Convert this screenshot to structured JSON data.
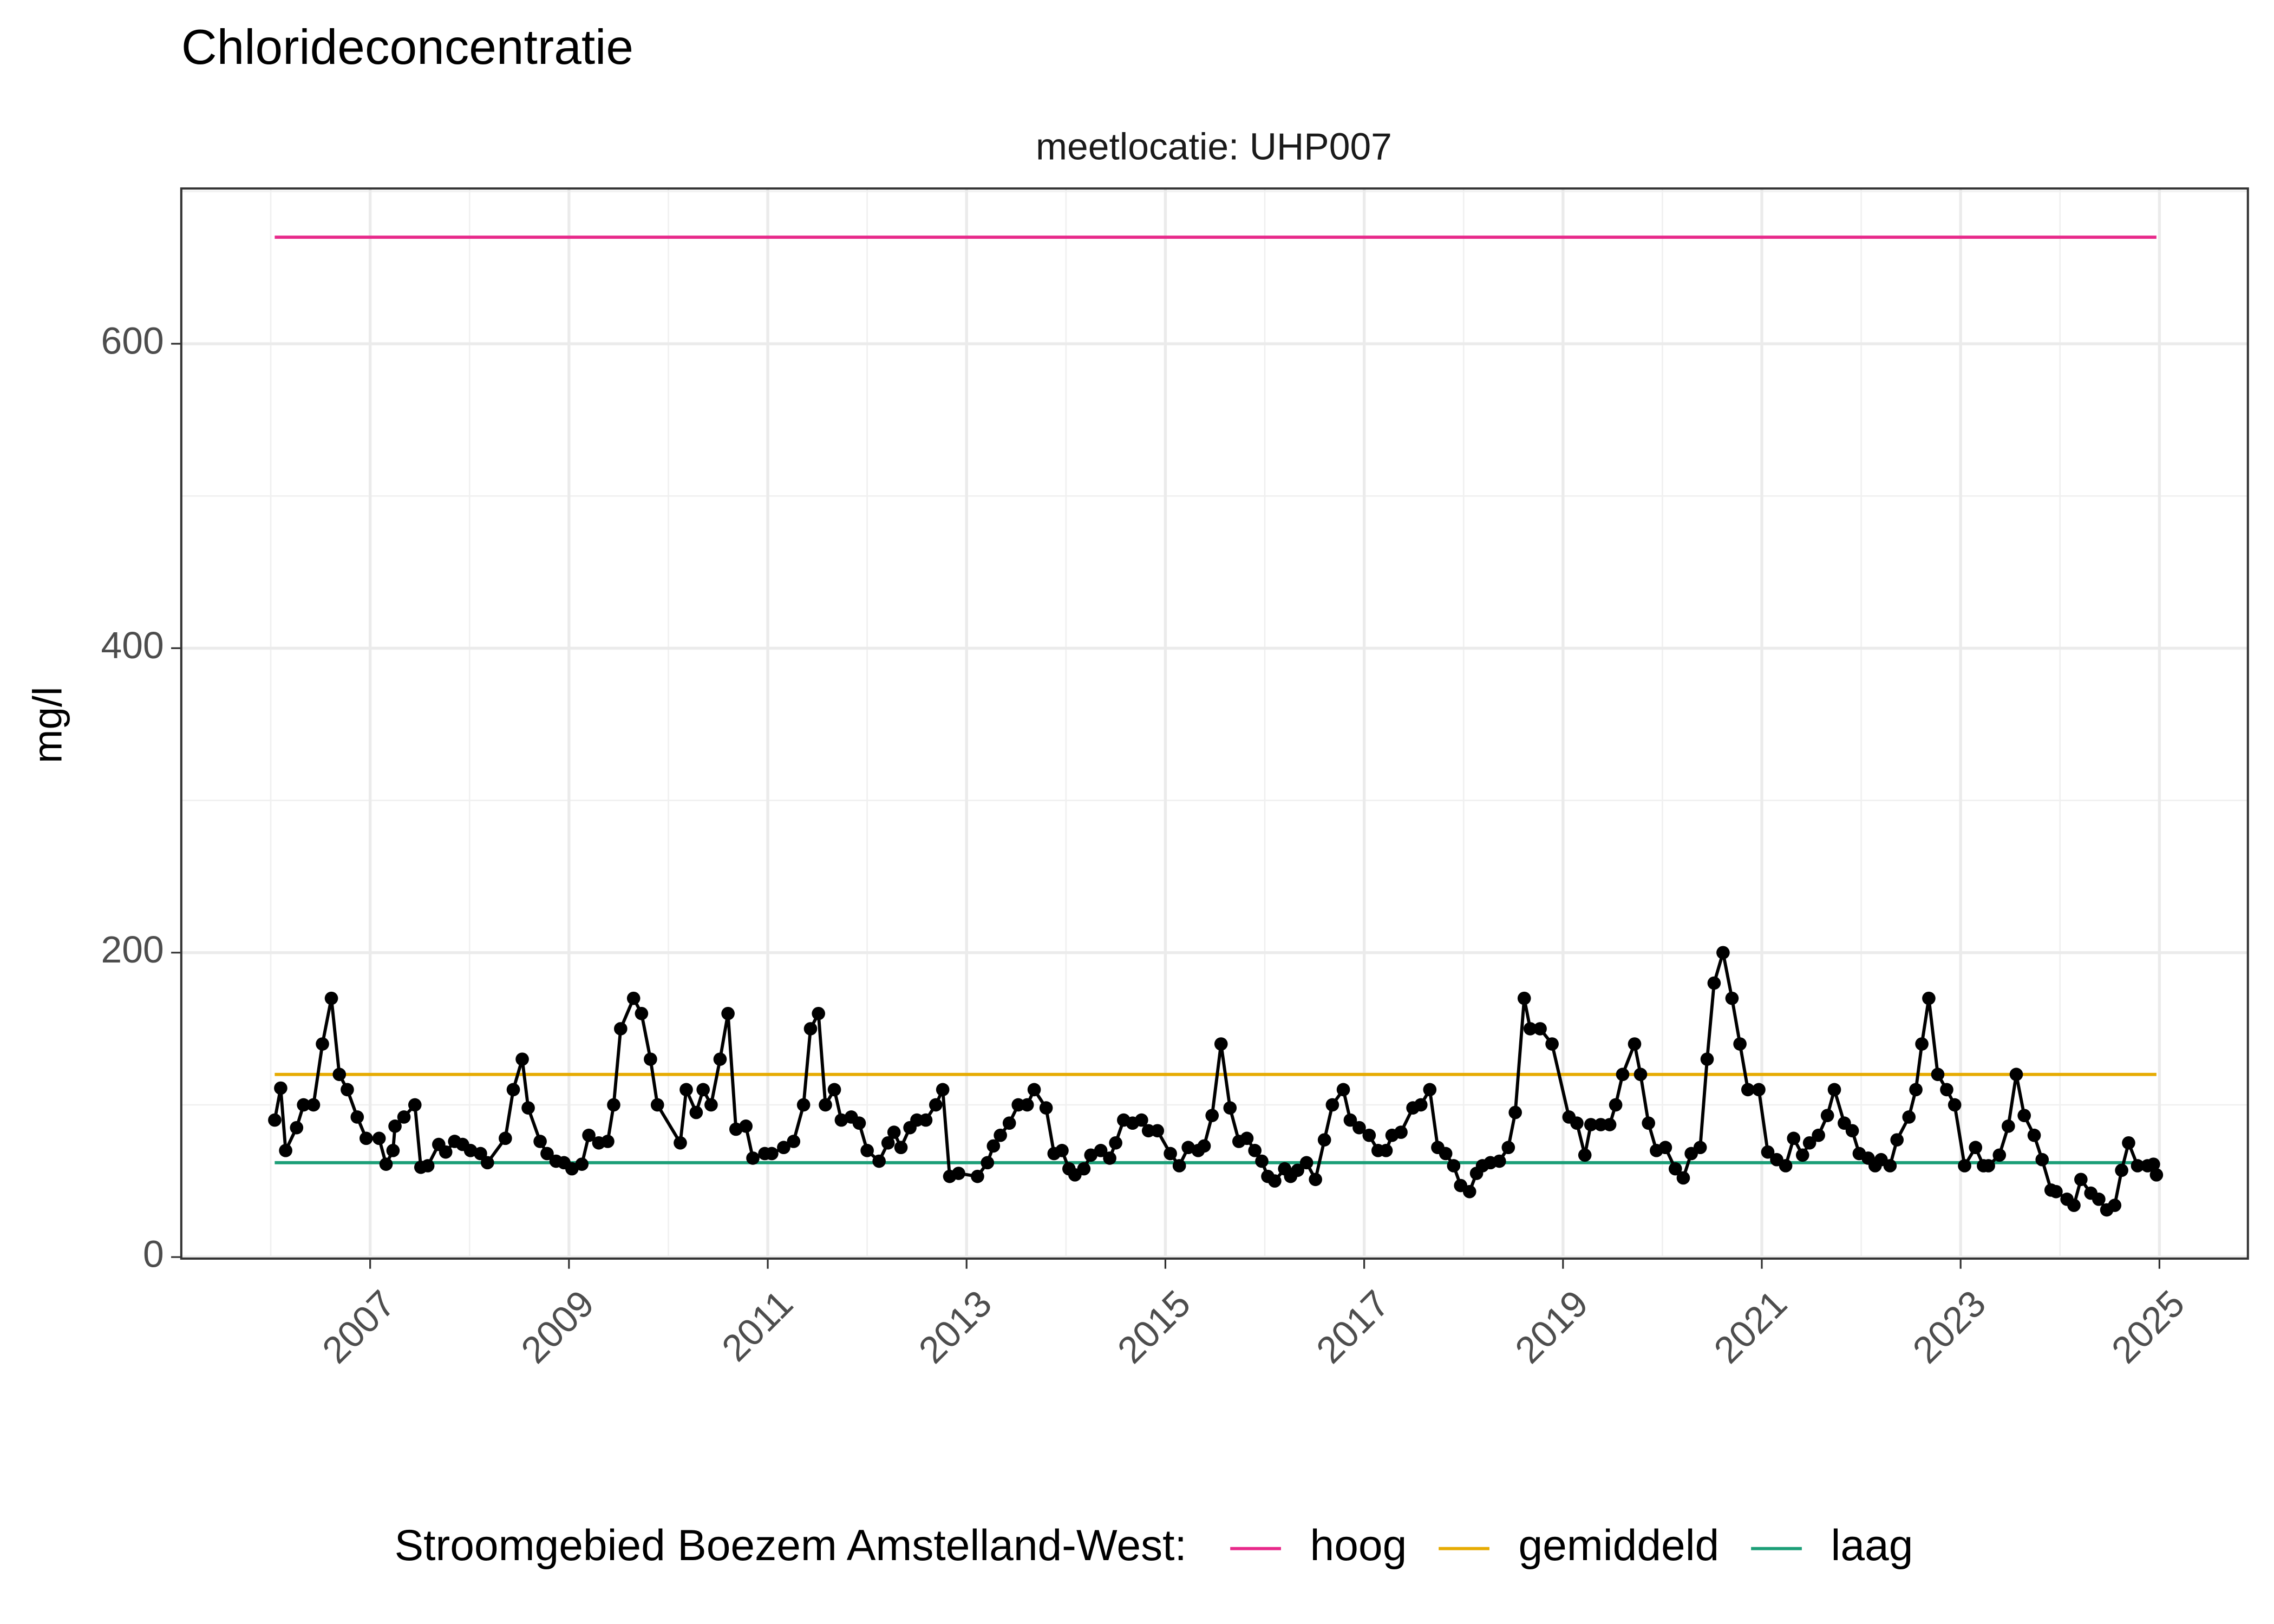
{
  "chart_data": {
    "type": "line",
    "title": "Chlorideconcentratie",
    "subtitle": "meetlocatie: UHP007",
    "y_label": "mg/l",
    "legend_title": "Stroomgebied Boezem Amstelland-West:",
    "legend_position": "bottom",
    "grid": true,
    "xlim": [
      2005.1,
      2025.89
    ],
    "ylim": [
      -1,
      702
    ],
    "xticks": [
      2007,
      2009,
      2011,
      2013,
      2015,
      2017,
      2019,
      2021,
      2023,
      2025
    ],
    "yticks": [
      0,
      200,
      400,
      600
    ],
    "series": [
      {
        "color": "#000000",
        "markers": true,
        "x": [
          2006.04,
          2006.1,
          2006.15,
          2006.26,
          2006.33,
          2006.43,
          2006.52,
          2006.61,
          2006.69,
          2006.77,
          2006.87,
          2006.96,
          2007.09,
          2007.16,
          2007.23,
          2007.25,
          2007.34,
          2007.45,
          2007.51,
          2007.58,
          2007.69,
          2007.76,
          2007.85,
          2007.93,
          2008.01,
          2008.11,
          2008.18,
          2008.36,
          2008.44,
          2008.53,
          2008.59,
          2008.71,
          2008.78,
          2008.87,
          2008.95,
          2009.03,
          2009.13,
          2009.2,
          2009.3,
          2009.39,
          2009.45,
          2009.52,
          2009.65,
          2009.73,
          2009.82,
          2009.89,
          2010.12,
          2010.18,
          2010.28,
          2010.35,
          2010.43,
          2010.52,
          2010.6,
          2010.68,
          2010.78,
          2010.85,
          2010.97,
          2011.04,
          2011.16,
          2011.26,
          2011.36,
          2011.43,
          2011.51,
          2011.58,
          2011.67,
          2011.74,
          2011.84,
          2011.92,
          2012.0,
          2012.12,
          2012.21,
          2012.27,
          2012.34,
          2012.43,
          2012.5,
          2012.59,
          2012.69,
          2012.76,
          2012.83,
          2012.92,
          2013.11,
          2013.21,
          2013.27,
          2013.34,
          2013.43,
          2013.52,
          2013.61,
          2013.68,
          2013.8,
          2013.88,
          2013.96,
          2014.03,
          2014.09,
          2014.18,
          2014.25,
          2014.35,
          2014.44,
          2014.5,
          2014.58,
          2014.67,
          2014.76,
          2014.83,
          2014.92,
          2015.05,
          2015.14,
          2015.23,
          2015.33,
          2015.39,
          2015.47,
          2015.56,
          2015.65,
          2015.74,
          2015.82,
          2015.9,
          2015.97,
          2016.03,
          2016.1,
          2016.2,
          2016.26,
          2016.33,
          2016.42,
          2016.51,
          2016.6,
          2016.68,
          2016.79,
          2016.86,
          2016.95,
          2017.05,
          2017.14,
          2017.22,
          2017.28,
          2017.37,
          2017.49,
          2017.57,
          2017.66,
          2017.74,
          2017.82,
          2017.9,
          2017.97,
          2018.06,
          2018.13,
          2018.19,
          2018.27,
          2018.36,
          2018.45,
          2018.52,
          2018.61,
          2018.67,
          2018.77,
          2018.89,
          2019.06,
          2019.14,
          2019.22,
          2019.28,
          2019.38,
          2019.47,
          2019.53,
          2019.6,
          2019.72,
          2019.78,
          2019.86,
          2019.94,
          2020.03,
          2020.13,
          2020.21,
          2020.29,
          2020.38,
          2020.45,
          2020.52,
          2020.61,
          2020.7,
          2020.78,
          2020.86,
          2020.97,
          2021.06,
          2021.15,
          2021.24,
          2021.32,
          2021.41,
          2021.48,
          2021.57,
          2021.66,
          2021.73,
          2021.83,
          2021.91,
          2021.98,
          2022.07,
          2022.14,
          2022.2,
          2022.29,
          2022.36,
          2022.48,
          2022.55,
          2022.61,
          2022.68,
          2022.77,
          2022.86,
          2022.94,
          2023.04,
          2023.15,
          2023.23,
          2023.28,
          2023.39,
          2023.48,
          2023.56,
          2023.64,
          2023.74,
          2023.82,
          2023.91,
          2023.96,
          2024.07,
          2024.14,
          2024.21,
          2024.31,
          2024.39,
          2024.47,
          2024.55,
          2024.62,
          2024.69,
          2024.78,
          2024.88,
          2024.94,
          2024.97
        ],
        "values": [
          90,
          111,
          70,
          85,
          100,
          100,
          140,
          170,
          120,
          110,
          92,
          78,
          78,
          61,
          70,
          86,
          92,
          100,
          59,
          60,
          74,
          69,
          76,
          74,
          70,
          68,
          62,
          78,
          110,
          130,
          98,
          76,
          68,
          63,
          62,
          58,
          61,
          80,
          75,
          76,
          100,
          150,
          170,
          160,
          130,
          100,
          75,
          110,
          95,
          110,
          100,
          130,
          160,
          84,
          86,
          65,
          68,
          68,
          72,
          76,
          100,
          150,
          160,
          100,
          110,
          90,
          92,
          88,
          70,
          63,
          75,
          82,
          72,
          85,
          90,
          90,
          100,
          110,
          53,
          55,
          53,
          62,
          73,
          80,
          88,
          100,
          100,
          110,
          98,
          68,
          70,
          58,
          54,
          58,
          67,
          70,
          65,
          75,
          90,
          88,
          90,
          83,
          83,
          68,
          60,
          72,
          70,
          73,
          93,
          140,
          98,
          76,
          78,
          70,
          63,
          53,
          50,
          58,
          53,
          57,
          62,
          51,
          77,
          100,
          110,
          90,
          85,
          80,
          70,
          70,
          80,
          82,
          98,
          100,
          110,
          72,
          68,
          60,
          47,
          43,
          55,
          60,
          62,
          63,
          72,
          95,
          170,
          150,
          150,
          140,
          92,
          88,
          67,
          87,
          87,
          87,
          100,
          120,
          140,
          120,
          88,
          70,
          72,
          58,
          52,
          68,
          72,
          130,
          180,
          200,
          170,
          140,
          110,
          110,
          69,
          64,
          60,
          78,
          67,
          75,
          80,
          93,
          110,
          88,
          83,
          68,
          65,
          60,
          64,
          60,
          77,
          92,
          110,
          140,
          170,
          120,
          110,
          100,
          60,
          72,
          60,
          60,
          67,
          86,
          120,
          93,
          80,
          64,
          44,
          43,
          38,
          34,
          51,
          42,
          38,
          31,
          34,
          57,
          75,
          60,
          60,
          61,
          54
        ]
      },
      {
        "name": "hoog",
        "color": "#e7298a",
        "x": [
          2006.04,
          2024.97
        ],
        "values": [
          670,
          670
        ]
      },
      {
        "name": "gemiddeld",
        "color": "#e6ab02",
        "x": [
          2006.04,
          2024.97
        ],
        "values": [
          120,
          120
        ]
      },
      {
        "name": "laag",
        "color": "#1b9e77",
        "x": [
          2006.04,
          2024.97
        ],
        "values": [
          62,
          62
        ]
      }
    ]
  }
}
